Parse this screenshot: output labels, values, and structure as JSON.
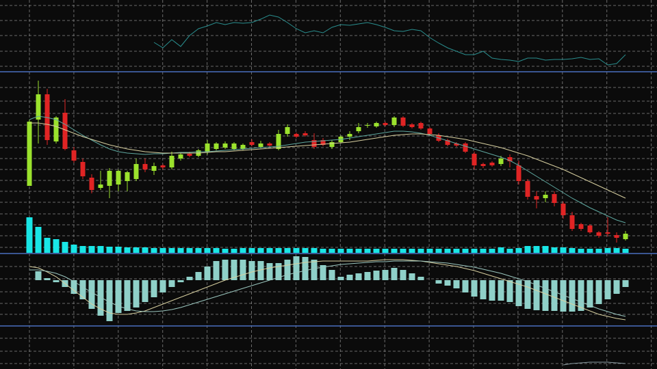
{
  "chart_data": [
    {
      "type": "line",
      "ylim": [
        0,
        105
      ],
      "series": [
        {
          "color": "#2a8f8f",
          "values": [
            null,
            null,
            null,
            null,
            null,
            null,
            null,
            null,
            null,
            null,
            null,
            null,
            null,
            null,
            43,
            35,
            47,
            37,
            53,
            63,
            67,
            72,
            69,
            72,
            71,
            72,
            77,
            83,
            80,
            72,
            63,
            57,
            60,
            57,
            65,
            69,
            68,
            70,
            72,
            69,
            65,
            60,
            59,
            62,
            60,
            50,
            42,
            35,
            30,
            25,
            25,
            30,
            20,
            18,
            17,
            15,
            20,
            20,
            17,
            18,
            18,
            19,
            21,
            18,
            19,
            10,
            12,
            25
          ]
        }
      ]
    },
    {
      "type": "candlestick",
      "ylim": [
        0,
        265
      ],
      "up_color": "#9be22d",
      "down_color": "#e02424",
      "open": [
        98,
        195,
        232,
        163,
        205,
        150,
        133,
        110,
        95,
        98,
        100,
        105,
        108,
        130,
        120,
        128,
        125,
        138,
        145,
        142,
        148,
        152,
        154,
        152,
        152,
        162,
        155,
        160,
        152,
        174,
        174,
        175,
        165,
        165,
        155,
        162,
        170,
        178,
        186,
        185,
        190,
        187,
        198,
        188,
        190,
        182,
        172,
        165,
        160,
        160,
        145,
        130,
        132,
        130,
        140,
        128,
        105,
        83,
        80,
        86,
        72,
        55,
        42,
        40,
        30,
        30,
        26,
        20
      ],
      "high": [
        195,
        252,
        240,
        200,
        225,
        155,
        138,
        115,
        120,
        124,
        122,
        120,
        138,
        138,
        132,
        130,
        148,
        146,
        148,
        152,
        165,
        162,
        163,
        162,
        160,
        166,
        164,
        162,
        180,
        188,
        176,
        178,
        175,
        168,
        165,
        172,
        178,
        190,
        190,
        192,
        192,
        200,
        200,
        190,
        192,
        184,
        175,
        167,
        162,
        162,
        148,
        132,
        134,
        142,
        144,
        135,
        108,
        90,
        90,
        90,
        75,
        60,
        44,
        42,
        32,
        52,
        30,
        32
      ],
      "low": [
        98,
        160,
        158,
        160,
        150,
        132,
        108,
        87,
        92,
        80,
        90,
        90,
        105,
        118,
        114,
        122,
        122,
        135,
        140,
        140,
        144,
        150,
        152,
        150,
        150,
        156,
        153,
        155,
        150,
        170,
        168,
        170,
        152,
        156,
        152,
        160,
        165,
        175,
        183,
        183,
        185,
        184,
        184,
        182,
        180,
        172,
        162,
        156,
        155,
        146,
        122,
        124,
        126,
        127,
        125,
        100,
        78,
        65,
        74,
        68,
        50,
        32,
        32,
        28,
        22,
        24,
        15,
        18
      ],
      "close": [
        192,
        232,
        165,
        198,
        152,
        135,
        112,
        92,
        100,
        120,
        120,
        118,
        130,
        122,
        127,
        125,
        142,
        144,
        142,
        150,
        160,
        160,
        160,
        160,
        158,
        158,
        160,
        157,
        174,
        184,
        170,
        172,
        155,
        158,
        162,
        170,
        174,
        184,
        187,
        190,
        187,
        198,
        186,
        184,
        182,
        174,
        164,
        158,
        157,
        148,
        128,
        127,
        128,
        138,
        134,
        105,
        82,
        78,
        85,
        73,
        55,
        35,
        35,
        30,
        25,
        28,
        22,
        28
      ],
      "lines": [
        {
          "color": "#5fa8a0",
          "values": [
            195,
            200,
            198,
            195,
            188,
            180,
            172,
            165,
            158,
            152,
            148,
            146,
            145,
            144,
            145,
            145,
            146,
            147,
            147,
            148,
            148,
            149,
            150,
            151,
            152,
            153,
            154,
            155,
            156,
            158,
            160,
            162,
            163,
            164,
            165,
            166,
            168,
            170,
            172,
            174,
            176,
            178,
            178,
            177,
            175,
            172,
            168,
            164,
            160,
            156,
            152,
            148,
            144,
            140,
            135,
            128,
            120,
            112,
            104,
            96,
            88,
            80,
            73,
            66,
            60,
            54,
            48,
            44
          ]
        },
        {
          "color": "#d8d0a0",
          "values": [
            190,
            190,
            188,
            185,
            180,
            175,
            170,
            166,
            162,
            158,
            155,
            152,
            150,
            148,
            147,
            146,
            146,
            146,
            146,
            146,
            147,
            148,
            148,
            149,
            150,
            151,
            152,
            153,
            154,
            155,
            156,
            157,
            158,
            159,
            160,
            161,
            162,
            164,
            166,
            168,
            170,
            172,
            173,
            174,
            174,
            173,
            172,
            170,
            168,
            166,
            163,
            160,
            157,
            154,
            150,
            146,
            142,
            137,
            132,
            127,
            122,
            116,
            110,
            104,
            98,
            92,
            86,
            80
          ]
        }
      ]
    },
    {
      "type": "bar",
      "ylim": [
        0,
        60
      ],
      "color": "#19e6e6",
      "values": [
        52,
        38,
        22,
        20,
        16,
        12,
        10,
        10,
        10,
        9,
        9,
        8,
        8,
        8,
        7,
        7,
        7,
        7,
        7,
        7,
        7,
        7,
        6,
        6,
        7,
        7,
        7,
        7,
        7,
        7,
        7,
        7,
        7,
        6,
        6,
        6,
        6,
        6,
        6,
        6,
        6,
        6,
        6,
        6,
        6,
        6,
        6,
        6,
        6,
        6,
        6,
        6,
        6,
        8,
        6,
        7,
        10,
        10,
        10,
        8,
        8,
        7,
        6,
        6,
        6,
        7,
        7,
        6
      ]
    },
    {
      "type": "bar",
      "ylim": [
        -67,
        40
      ],
      "color": "#8fd0c8",
      "values": [
        0,
        13,
        3,
        -3,
        -10,
        -20,
        -28,
        -42,
        -52,
        -60,
        -48,
        -45,
        -40,
        -32,
        -25,
        -18,
        -10,
        -3,
        5,
        12,
        20,
        28,
        30,
        30,
        30,
        28,
        28,
        25,
        25,
        30,
        35,
        34,
        30,
        22,
        15,
        5,
        8,
        10,
        12,
        14,
        15,
        18,
        15,
        10,
        5,
        0,
        -5,
        -8,
        -12,
        -18,
        -24,
        -28,
        -30,
        -30,
        -32,
        -38,
        -42,
        -44,
        -45,
        -45,
        -46,
        -46,
        -45,
        -40,
        -35,
        -28,
        -20,
        -10
      ],
      "lines": [
        {
          "color": "#d8d0a0",
          "values": [
            20,
            18,
            12,
            5,
            -5,
            -15,
            -25,
            -35,
            -42,
            -48,
            -50,
            -50,
            -48,
            -45,
            -40,
            -35,
            -30,
            -25,
            -20,
            -15,
            -10,
            -5,
            0,
            4,
            8,
            12,
            15,
            18,
            20,
            22,
            24,
            26,
            27,
            28,
            28,
            28,
            28,
            28,
            28,
            29,
            30,
            30,
            30,
            29,
            28,
            26,
            24,
            22,
            20,
            17,
            14,
            10,
            6,
            2,
            -2,
            -6,
            -10,
            -15,
            -20,
            -25,
            -30,
            -35,
            -40,
            -45,
            -50,
            -53,
            -56,
            -58
          ]
        },
        {
          "color": "#9cc8c0",
          "values": [
            15,
            15,
            13,
            10,
            5,
            -2,
            -10,
            -18,
            -25,
            -32,
            -38,
            -42,
            -45,
            -46,
            -46,
            -45,
            -43,
            -40,
            -36,
            -32,
            -28,
            -24,
            -20,
            -16,
            -12,
            -8,
            -4,
            0,
            4,
            8,
            11,
            14,
            17,
            19,
            21,
            23,
            24,
            25,
            26,
            27,
            27,
            28,
            28,
            28,
            28,
            27,
            26,
            25,
            23,
            21,
            19,
            16,
            13,
            10,
            6,
            2,
            -2,
            -7,
            -12,
            -17,
            -22,
            -27,
            -32,
            -37,
            -42,
            -46,
            -50,
            -53
          ]
        }
      ]
    },
    {
      "type": "line",
      "ylim": [
        0,
        63
      ],
      "series": [
        {
          "color": "#8a9aa0",
          "values": [
            null,
            null,
            null,
            null,
            null,
            null,
            null,
            null,
            null,
            null,
            null,
            null,
            null,
            null,
            null,
            null,
            null,
            null,
            null,
            null,
            null,
            null,
            null,
            null,
            null,
            null,
            null,
            null,
            null,
            null,
            null,
            null,
            null,
            null,
            null,
            null,
            null,
            null,
            null,
            null,
            null,
            null,
            null,
            null,
            null,
            null,
            null,
            null,
            null,
            null,
            null,
            null,
            null,
            null,
            null,
            null,
            null,
            null,
            null,
            null,
            6,
            8,
            9,
            10,
            10,
            10,
            9,
            8
          ]
        }
      ]
    }
  ]
}
